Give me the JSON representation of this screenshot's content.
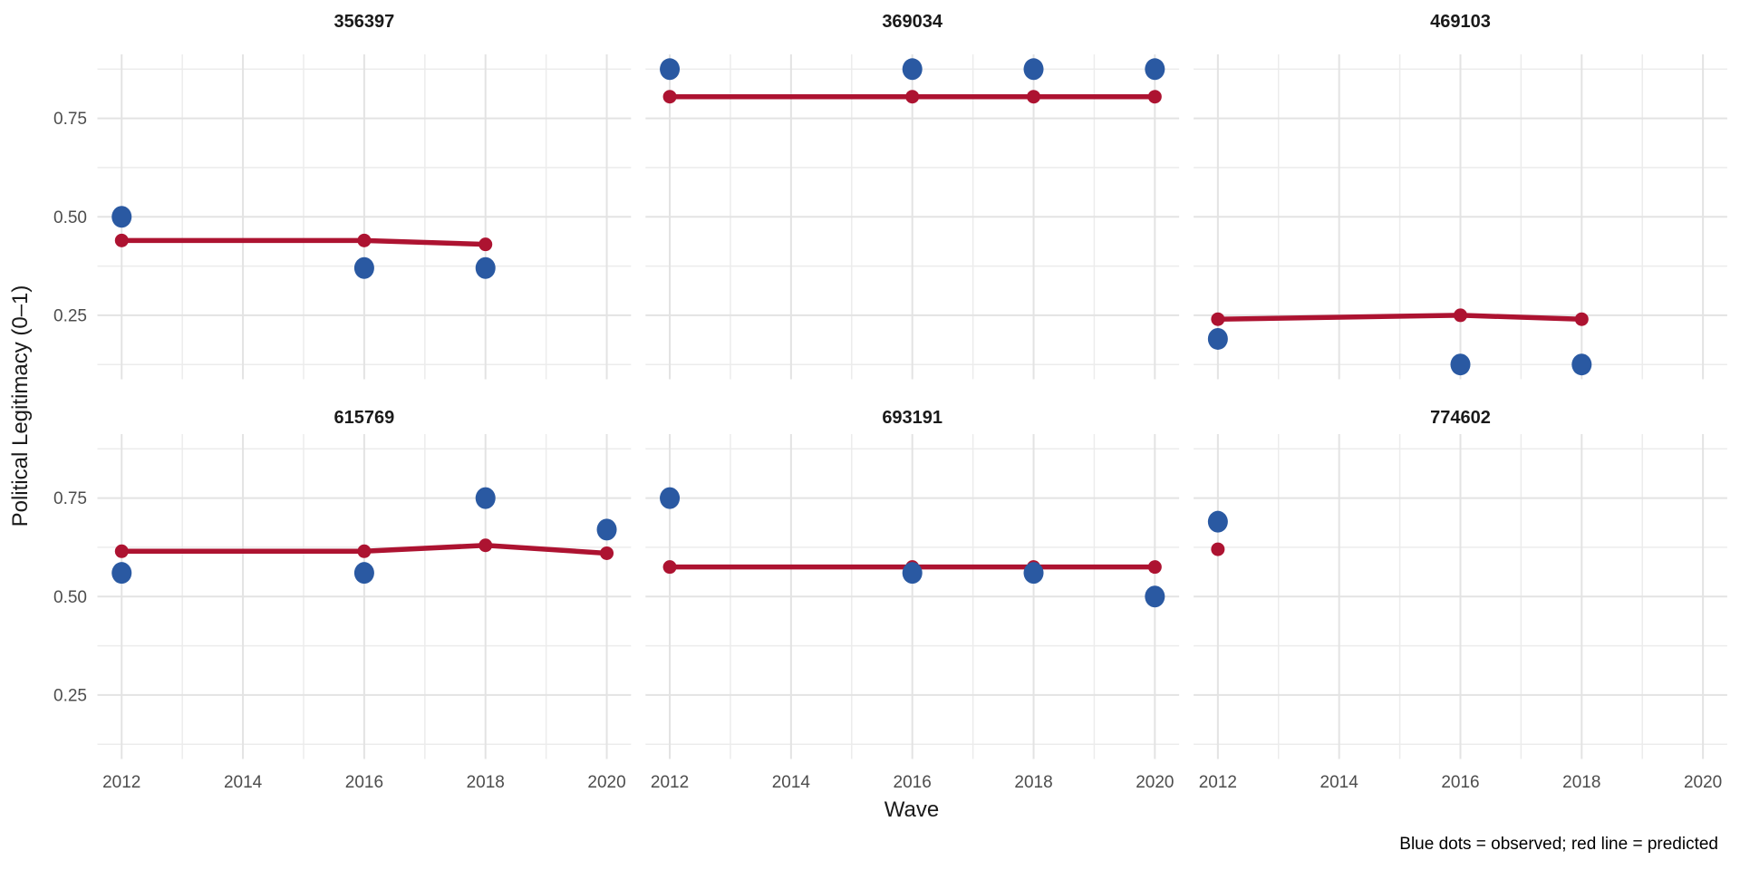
{
  "chart_data": {
    "type": "scatter",
    "title": "",
    "xlabel": "Wave",
    "ylabel": "Political Legitimacy (0–1)",
    "caption": "Blue dots = observed; red line = predicted",
    "legend_position": "none",
    "grid": true,
    "x_ticks": [
      2012,
      2014,
      2016,
      2018,
      2020
    ],
    "x_minor_ticks": [
      2013,
      2015,
      2017,
      2019
    ],
    "y_ticks": [
      0.75,
      0.5,
      0.25
    ],
    "y_minor_ticks": [
      0.875,
      0.625,
      0.375,
      0.125
    ],
    "xlim": [
      2011.6,
      2020.4
    ],
    "ylim": [
      0.0875,
      0.9125
    ],
    "colors": {
      "observed": "#2a59a2",
      "predicted": "#ad1331"
    },
    "facets": [
      {
        "id": "356397",
        "observed": [
          {
            "wave": 2012,
            "value": 0.5
          },
          {
            "wave": 2016,
            "value": 0.37
          },
          {
            "wave": 2018,
            "value": 0.37
          }
        ],
        "predicted": [
          {
            "wave": 2012,
            "value": 0.44
          },
          {
            "wave": 2016,
            "value": 0.44
          },
          {
            "wave": 2018,
            "value": 0.43
          }
        ]
      },
      {
        "id": "369034",
        "observed": [
          {
            "wave": 2012,
            "value": 0.875
          },
          {
            "wave": 2016,
            "value": 0.875
          },
          {
            "wave": 2018,
            "value": 0.875
          },
          {
            "wave": 2020,
            "value": 0.875
          }
        ],
        "predicted": [
          {
            "wave": 2012,
            "value": 0.805
          },
          {
            "wave": 2016,
            "value": 0.805
          },
          {
            "wave": 2018,
            "value": 0.805
          },
          {
            "wave": 2020,
            "value": 0.805
          }
        ]
      },
      {
        "id": "469103",
        "observed": [
          {
            "wave": 2012,
            "value": 0.19
          },
          {
            "wave": 2016,
            "value": 0.125
          },
          {
            "wave": 2018,
            "value": 0.125
          }
        ],
        "predicted": [
          {
            "wave": 2012,
            "value": 0.24
          },
          {
            "wave": 2016,
            "value": 0.25
          },
          {
            "wave": 2018,
            "value": 0.24
          }
        ]
      },
      {
        "id": "615769",
        "observed": [
          {
            "wave": 2012,
            "value": 0.56
          },
          {
            "wave": 2016,
            "value": 0.56
          },
          {
            "wave": 2018,
            "value": 0.75
          },
          {
            "wave": 2020,
            "value": 0.67
          }
        ],
        "predicted": [
          {
            "wave": 2012,
            "value": 0.615
          },
          {
            "wave": 2016,
            "value": 0.615
          },
          {
            "wave": 2018,
            "value": 0.63
          },
          {
            "wave": 2020,
            "value": 0.61
          }
        ]
      },
      {
        "id": "693191",
        "observed": [
          {
            "wave": 2012,
            "value": 0.75
          },
          {
            "wave": 2016,
            "value": 0.56
          },
          {
            "wave": 2018,
            "value": 0.56
          },
          {
            "wave": 2020,
            "value": 0.5
          }
        ],
        "predicted": [
          {
            "wave": 2012,
            "value": 0.575
          },
          {
            "wave": 2016,
            "value": 0.575
          },
          {
            "wave": 2018,
            "value": 0.575
          },
          {
            "wave": 2020,
            "value": 0.575
          }
        ]
      },
      {
        "id": "774602",
        "observed": [
          {
            "wave": 2012,
            "value": 0.69
          }
        ],
        "predicted": [
          {
            "wave": 2012,
            "value": 0.62
          }
        ]
      }
    ]
  }
}
